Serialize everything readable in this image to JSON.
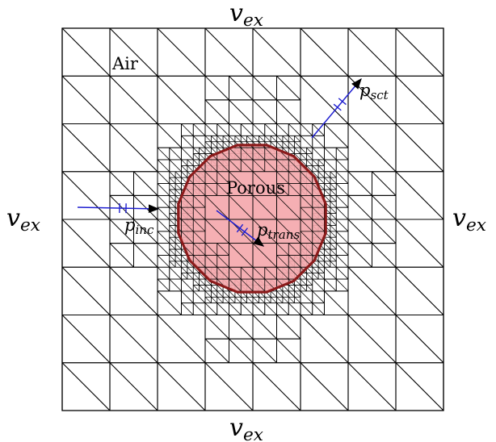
{
  "diagram": {
    "boundary_labels": {
      "top": "v_ex",
      "bottom": "v_ex",
      "left": "v_ex",
      "right": "v_ex"
    },
    "regions": {
      "air": "Air",
      "porous": "Porous"
    },
    "waves": {
      "incident": "p_inc",
      "transmitted": "p_trans",
      "scattered": "p_sct"
    },
    "colors": {
      "porous_fill": "#f4a8ac",
      "porous_edge": "#8b1a1a",
      "mesh_line": "#000000",
      "wave_line": "#1f1fd0"
    },
    "mesh": {
      "coarse_divisions": 8,
      "refinement_levels": 3
    }
  }
}
